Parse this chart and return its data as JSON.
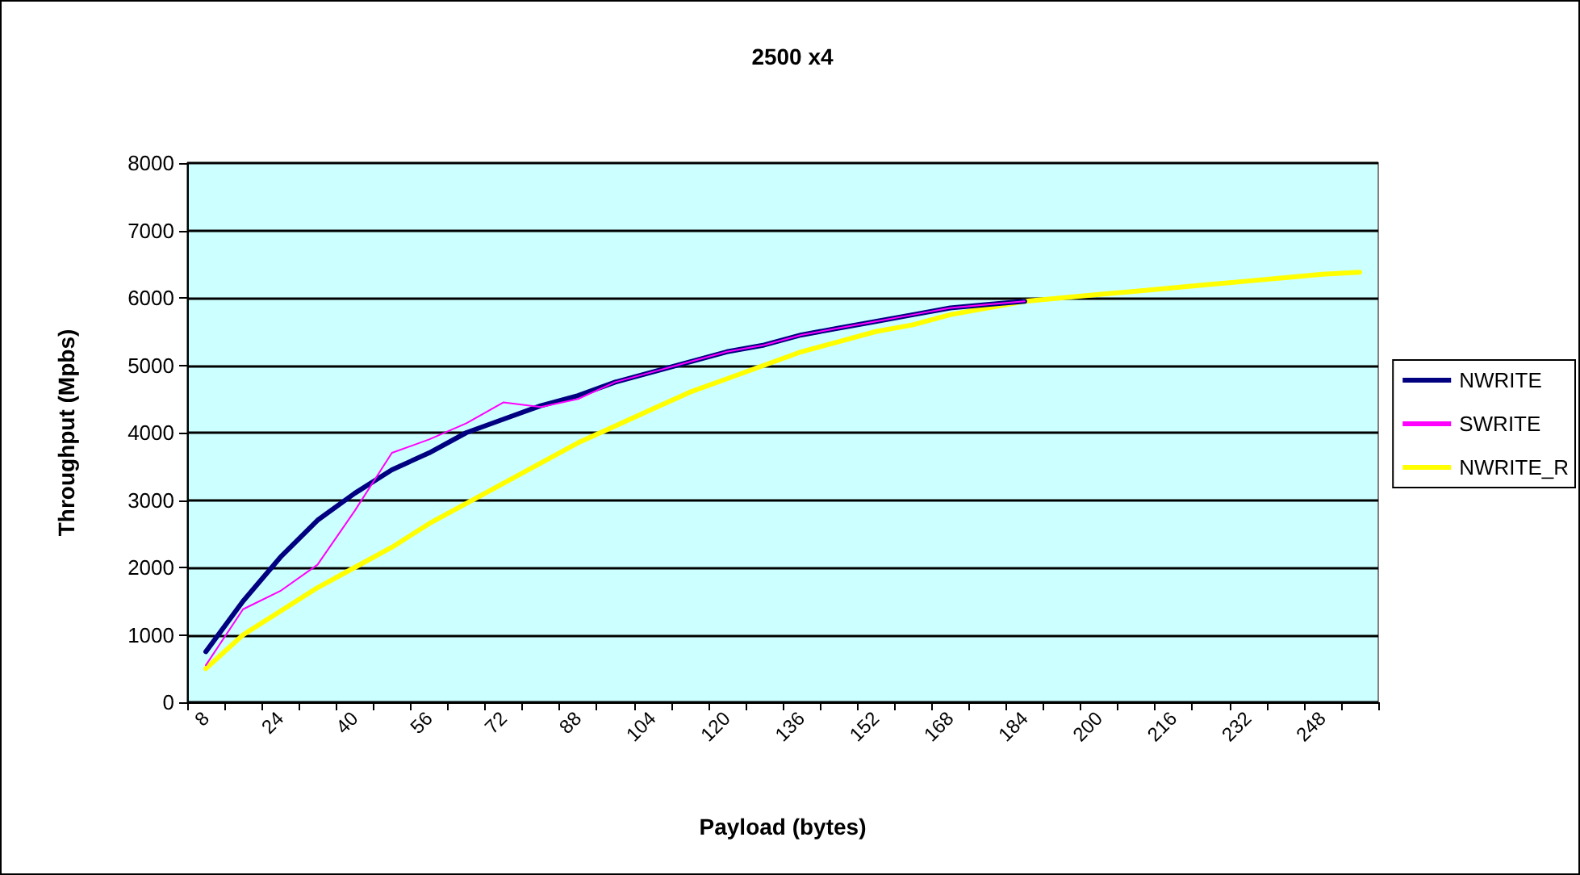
{
  "chart_data": {
    "type": "line",
    "title": "2500 x4",
    "xlabel": "Payload (bytes)",
    "ylabel": "Throughput (Mpbs)",
    "categories": [
      "8",
      null,
      "24",
      null,
      "40",
      null,
      "56",
      null,
      "72",
      null,
      "88",
      null,
      "104",
      null,
      "120",
      null,
      "136",
      null,
      "152",
      null,
      "168",
      null,
      "184",
      null,
      "200",
      null,
      "216",
      null,
      "232",
      null,
      "248",
      null
    ],
    "series": [
      {
        "name": "NWRITE",
        "color": "#000080",
        "values": [
          750,
          1500,
          2150,
          2700,
          3100,
          3450,
          3700,
          4000,
          4200,
          4400,
          4550,
          4750,
          4900,
          5050,
          5200,
          5300,
          5450,
          5550,
          5650,
          5750,
          5850,
          5900,
          5950,
          null,
          null,
          null,
          null,
          null,
          null,
          null,
          null,
          null
        ]
      },
      {
        "name": "SWRITE",
        "color": "#ff00ff",
        "values": [
          550,
          1380,
          1650,
          2040,
          2840,
          3700,
          3900,
          4140,
          4450,
          4380,
          4500,
          4750,
          4900,
          5050,
          5200,
          5300,
          5450,
          5550,
          5650,
          5750,
          5850,
          5900,
          5950,
          null,
          null,
          null,
          null,
          null,
          null,
          null,
          null,
          null
        ]
      },
      {
        "name": "NWRITE_R",
        "color": "#ffff00",
        "values": [
          500,
          1000,
          1350,
          1700,
          2000,
          2300,
          2650,
          2950,
          3250,
          3550,
          3850,
          4100,
          4350,
          4600,
          4800,
          5000,
          5200,
          5350,
          5500,
          5600,
          5750,
          5850,
          5950,
          6000,
          6050,
          6100,
          6150,
          6200,
          6250,
          6300,
          6350,
          6380
        ]
      }
    ],
    "ylim": [
      0,
      8000
    ],
    "yticks": [
      0,
      1000,
      2000,
      3000,
      4000,
      5000,
      6000,
      7000,
      8000
    ],
    "grid": "y",
    "legend": "right",
    "marker": "none",
    "line_style": "solid"
  }
}
